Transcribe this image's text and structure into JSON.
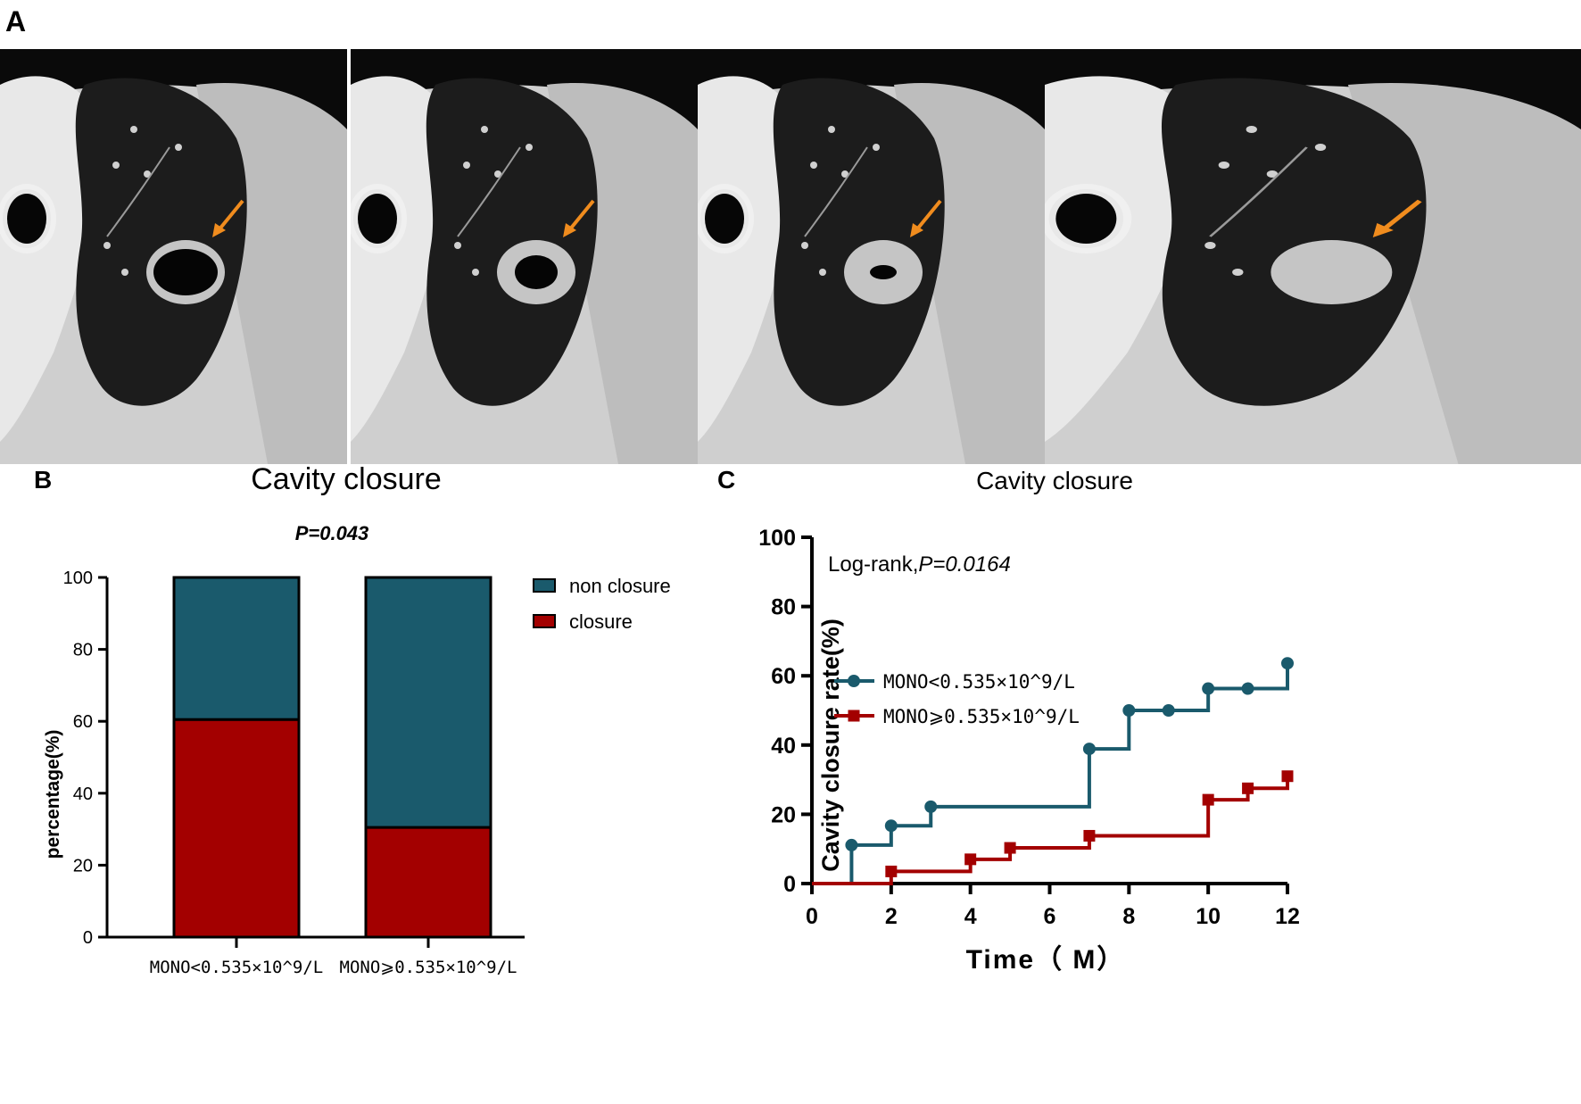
{
  "panels": {
    "a": "A",
    "b": "B",
    "c": "C"
  },
  "ct_images": [
    {
      "name": "ct-scan-1",
      "arrow": true,
      "lesion": "large-cavity"
    },
    {
      "name": "ct-scan-2",
      "arrow": true,
      "lesion": "medium-cavity"
    },
    {
      "name": "ct-scan-3",
      "arrow": true,
      "lesion": "small-cavity"
    },
    {
      "name": "ct-scan-4",
      "arrow": true,
      "lesion": "closed-scar"
    }
  ],
  "colors": {
    "teal": "#1a5a6c",
    "red": "#a30000",
    "arrow": "#f08c1e"
  },
  "chart_data": [
    {
      "type": "bar",
      "stacked": true,
      "title": "Cavity closure",
      "subtitle": "P=0.043",
      "ylabel": "percentage(%)",
      "xlabel": "",
      "ylim": [
        0,
        100
      ],
      "yticks": [
        0,
        20,
        40,
        60,
        80,
        100
      ],
      "categories": [
        "MONO<0.535×10^9/L",
        "MONO⩾0.535×10^9/L"
      ],
      "series": [
        {
          "name": "closure",
          "values": [
            60.5,
            30.5
          ],
          "color": "#a30000"
        },
        {
          "name": "non closure",
          "values": [
            39.5,
            69.5
          ],
          "color": "#1a5a6c"
        }
      ],
      "legend": [
        "non closure",
        "closure"
      ]
    },
    {
      "type": "line",
      "step": true,
      "title": "Cavity closure",
      "annotation_prefix": "Log-rank,",
      "annotation_p": "P=0.0164",
      "xlabel": "Time（ M）",
      "ylabel": "Cavity closure rate(%)",
      "xlim": [
        0,
        12
      ],
      "ylim": [
        0,
        100
      ],
      "xticks": [
        0,
        2,
        4,
        6,
        8,
        10,
        12
      ],
      "yticks": [
        0,
        20,
        40,
        60,
        80,
        100
      ],
      "series": [
        {
          "name": "MONO<0.535×10^9/L",
          "marker": "circle",
          "color": "#1a5a6c",
          "x": [
            0,
            1,
            2,
            3,
            7,
            8,
            9,
            10,
            11,
            12
          ],
          "y": [
            0,
            11.1,
            16.7,
            22.2,
            38.9,
            50,
            50,
            56.3,
            56.3,
            63.6
          ]
        },
        {
          "name": "MONO⩾0.535×10^9/L",
          "marker": "square",
          "color": "#a30000",
          "x": [
            0,
            2,
            4,
            5,
            7,
            10,
            11,
            12
          ],
          "y": [
            0,
            3.5,
            7,
            10.3,
            13.8,
            24.2,
            27.5,
            31
          ]
        }
      ]
    }
  ]
}
